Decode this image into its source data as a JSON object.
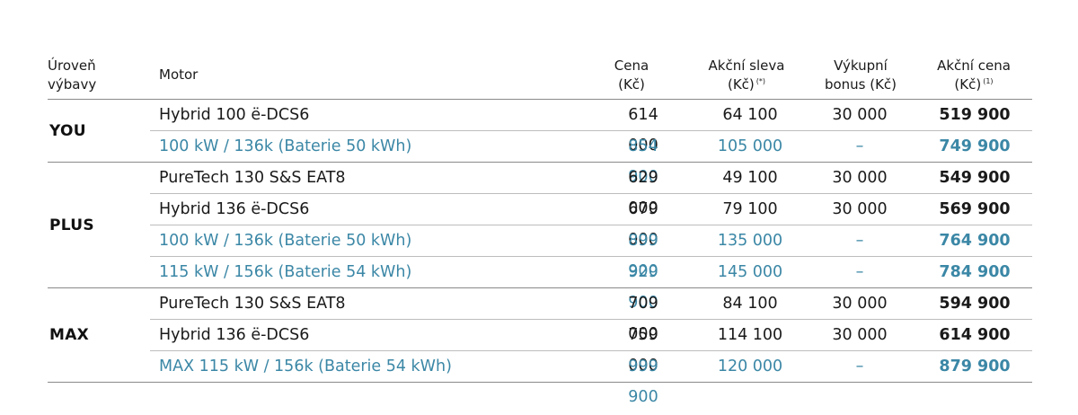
{
  "header": {
    "level_line1": "Úroveň",
    "level_line2": "výbavy",
    "motor": "Motor",
    "price_line1": "Cena",
    "price_line2": "(Kč)",
    "discount_line1": "Akční sleva",
    "discount_line2": "(Kč)",
    "discount_sup": "(*)",
    "bonus_line1": "Výkupní",
    "bonus_line2": "bonus (Kč)",
    "action_line1": "Akční cena",
    "action_line2": "(Kč)",
    "action_sup": "(1)"
  },
  "colors": {
    "electric_accent": "#3b87a6",
    "text": "#1a1a1a",
    "rule": "#8a8a8a"
  },
  "groups": [
    {
      "level": "YOU",
      "rows": [
        {
          "motor": "Hybrid 100 ë-DCS6",
          "price": "614 000",
          "discount": "64 100",
          "bonus": "30 000",
          "action_price": "519 900",
          "electric": false
        },
        {
          "motor": "100 kW / 136k  (Baterie 50 kWh)",
          "price": "854 900",
          "discount": "105 000",
          "bonus": "–",
          "action_price": "749 900",
          "electric": true
        }
      ]
    },
    {
      "level": "PLUS",
      "rows": [
        {
          "motor": "PureTech 130 S&S EAT8",
          "price": "629 000",
          "discount": "49 100",
          "bonus": "30 000",
          "action_price": "549 900",
          "electric": false
        },
        {
          "motor": "Hybrid 136 ë-DCS6",
          "price": "679 000",
          "discount": "79 100",
          "bonus": "30 000",
          "action_price": "569 900",
          "electric": false
        },
        {
          "motor": "100 kW / 136k  (Baterie 50 kWh)",
          "price": "899 900",
          "discount": "135 000",
          "bonus": "–",
          "action_price": "764 900",
          "electric": true
        },
        {
          "motor": "115 kW / 156k  (Baterie 54 kWh)",
          "price": "929 900",
          "discount": "145 000",
          "bonus": "–",
          "action_price": "784 900",
          "electric": true
        }
      ]
    },
    {
      "level": "MAX",
      "rows": [
        {
          "motor": "PureTech 130 S&S EAT8",
          "price": "709 000",
          "discount": "84 100",
          "bonus": "30 000",
          "action_price": "594 900",
          "electric": false
        },
        {
          "motor": "Hybrid 136 ë-DCS6",
          "price": "759 000",
          "discount": "114 100",
          "bonus": "30 000",
          "action_price": "614 900",
          "electric": false
        },
        {
          "motor": "MAX 115 kW / 156k  (Baterie 54 kWh)",
          "price": "999 900",
          "discount": "120 000",
          "bonus": "–",
          "action_price": "879 900",
          "electric": true
        }
      ]
    }
  ]
}
